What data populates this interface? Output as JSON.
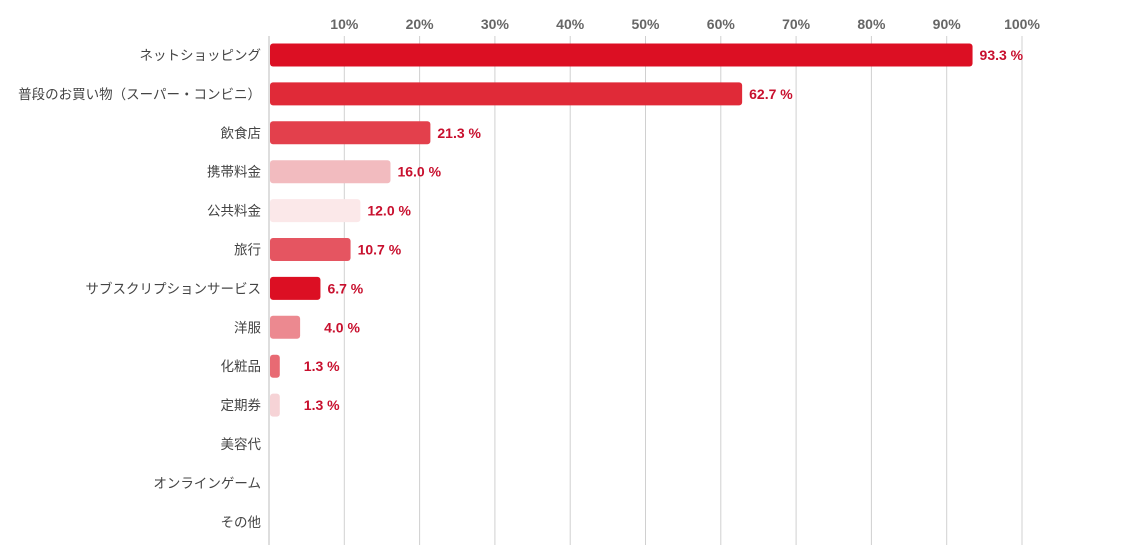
{
  "chart_data": {
    "type": "bar",
    "orientation": "horizontal",
    "title": "",
    "xlabel": "",
    "ylabel": "",
    "xlim": [
      0,
      100
    ],
    "grid": true,
    "tick_values": [
      10,
      20,
      30,
      40,
      50,
      60,
      70,
      80,
      90,
      100
    ],
    "tick_labels": [
      "10%",
      "20%",
      "30%",
      "40%",
      "50%",
      "60%",
      "70%",
      "80%",
      "90%",
      "100%"
    ],
    "value_suffix": " %",
    "categories": [
      "ネットショッピング",
      "普段のお買い物（スーパー・コンビニ）",
      "飲食店",
      "携帯料金",
      "公共料金",
      "旅行",
      "サブスクリプションサービス",
      "洋服",
      "化粧品",
      "定期券",
      "美容代",
      "オンラインゲーム",
      "その他"
    ],
    "values": [
      93.3,
      62.7,
      21.3,
      16.0,
      12.0,
      10.7,
      6.7,
      4.0,
      1.3,
      1.3,
      0,
      0,
      0
    ],
    "value_labels": [
      "93.3 %",
      "62.7 %",
      "21.3 %",
      "16.0 %",
      "12.0 %",
      "10.7 %",
      "6.7 %",
      "4.0 %",
      "1.3 %",
      "1.3 %",
      "",
      "",
      ""
    ],
    "colors": [
      "#dc0f23",
      "#e02a38",
      "#e3404c",
      "#f2bbbf",
      "#fbe8e9",
      "#e55561",
      "#dc0f23",
      "#ec8990",
      "#e86a73",
      "#f6d3d6",
      "#dc0f23",
      "#dc0f23",
      "#dc0f23"
    ],
    "label_color": "#c8102e"
  }
}
